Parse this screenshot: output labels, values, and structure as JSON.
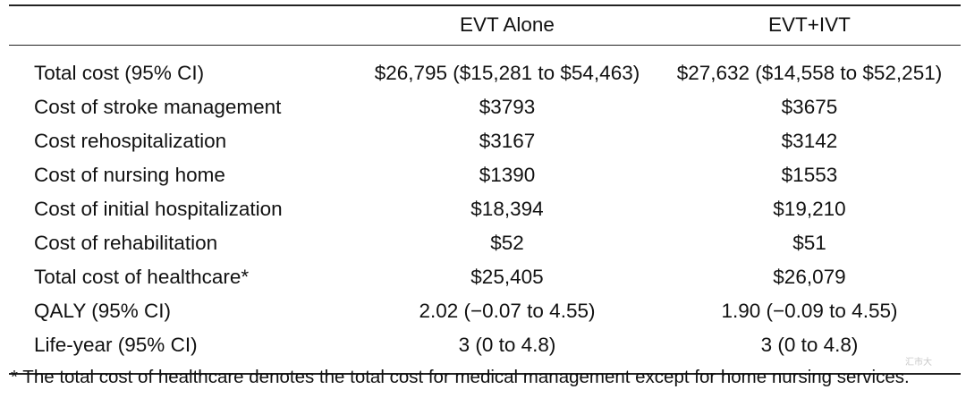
{
  "table": {
    "headers": [
      "",
      "EVT Alone",
      "EVT+IVT"
    ],
    "rows": [
      {
        "label": "Total cost (95% CI)",
        "evt_alone": "$26,795 ($15,281 to $54,463)",
        "evt_ivt": "$27,632 ($14,558 to $52,251)"
      },
      {
        "label": "Cost of stroke management",
        "evt_alone": "$3793",
        "evt_ivt": "$3675"
      },
      {
        "label": "Cost rehospitalization",
        "evt_alone": "$3167",
        "evt_ivt": "$3142"
      },
      {
        "label": "Cost of nursing home",
        "evt_alone": "$1390",
        "evt_ivt": "$1553"
      },
      {
        "label": "Cost of initial hospitalization",
        "evt_alone": "$18,394",
        "evt_ivt": "$19,210"
      },
      {
        "label": "Cost of rehabilitation",
        "evt_alone": "$52",
        "evt_ivt": "$51"
      },
      {
        "label": "Total cost of healthcare*",
        "evt_alone": "$25,405",
        "evt_ivt": "$26,079"
      },
      {
        "label": "QALY (95% CI)",
        "evt_alone": "2.02 (−0.07 to 4.55)",
        "evt_ivt": "1.90 (−0.09 to 4.55)"
      },
      {
        "label": "Life-year (95% CI)",
        "evt_alone": "3 (0 to 4.8)",
        "evt_ivt": "3 (0 to 4.8)"
      }
    ]
  },
  "footnote": "* The total cost of healthcare denotes the total cost for medical management except for home nursing services.",
  "watermark": "汇市大"
}
